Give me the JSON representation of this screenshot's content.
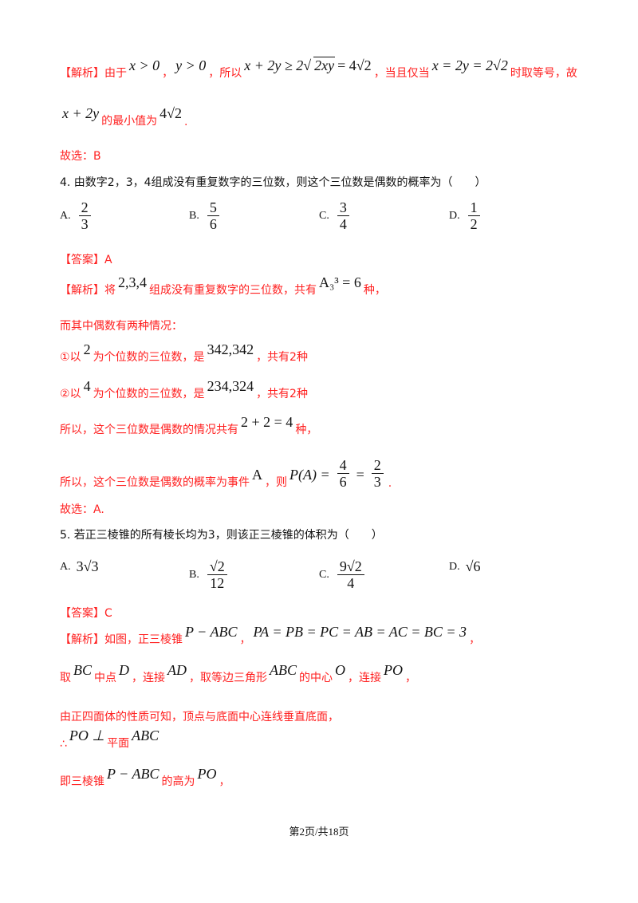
{
  "lines": [
    {
      "segs": [
        {
          "t": "r",
          "v": "【解析】由于"
        },
        {
          "t": "m",
          "v": "x > 0"
        },
        {
          "t": "r",
          "v": "，"
        },
        {
          "t": "m",
          "v": "y > 0"
        },
        {
          "t": "r",
          "v": "，所以"
        },
        {
          "t": "m",
          "v": "x + 2y ≥ 2√"
        },
        {
          "t": "rad",
          "v": "2xy"
        },
        {
          "t": "mu",
          "v": "= 4√2"
        },
        {
          "t": "r",
          "v": "，当且仅当"
        },
        {
          "t": "m",
          "v": "x = 2y = 2√2"
        },
        {
          "t": "r",
          "v": "时取等号，故"
        }
      ]
    },
    {
      "segs": [
        {
          "t": "m",
          "v": "x + 2y"
        },
        {
          "t": "r",
          "v": "的最小值为"
        },
        {
          "t": "mu",
          "v": "4√2"
        },
        {
          "t": "r",
          "v": "."
        }
      ]
    },
    {
      "segs": [
        {
          "t": "r",
          "v": "故选：B"
        }
      ]
    },
    {
      "segs": [
        {
          "t": "k",
          "v": "4. 由数字2，3，4组成没有重复数字的三位数，则这个三位数是偶数的概率为（　　）"
        }
      ]
    },
    {
      "options": [
        {
          "label": "A.",
          "num": "2",
          "den": "3"
        },
        {
          "label": "B.",
          "num": "5",
          "den": "6"
        },
        {
          "label": "C.",
          "num": "3",
          "den": "4"
        },
        {
          "label": "D.",
          "num": "1",
          "den": "2"
        }
      ]
    },
    {
      "segs": [
        {
          "t": "r",
          "v": "【答案】A"
        }
      ]
    },
    {
      "segs": [
        {
          "t": "r",
          "v": "【解析】将"
        },
        {
          "t": "mu",
          "v": "2,3,4"
        },
        {
          "t": "r",
          "v": "组成没有重复数字的三位数，共有"
        },
        {
          "t": "mu",
          "v": "A₃³ = 6"
        },
        {
          "t": "r",
          "v": "种，"
        }
      ]
    },
    {
      "segs": [
        {
          "t": "r",
          "v": "而其中偶数有两种情况："
        }
      ]
    },
    {
      "segs": [
        {
          "t": "r",
          "v": "①以"
        },
        {
          "t": "mu",
          "v": "2"
        },
        {
          "t": "r",
          "v": "为个位数的三位数，是"
        },
        {
          "t": "mu",
          "v": "342,342"
        },
        {
          "t": "r",
          "v": "，共有2种"
        }
      ]
    },
    {
      "segs": [
        {
          "t": "r",
          "v": "②以"
        },
        {
          "t": "mu",
          "v": "4"
        },
        {
          "t": "r",
          "v": "为个位数的三位数，是"
        },
        {
          "t": "mu",
          "v": "234,324"
        },
        {
          "t": "r",
          "v": "，共有2种"
        }
      ]
    },
    {
      "segs": [
        {
          "t": "r",
          "v": "所以，这个三位数是偶数的情况共有"
        },
        {
          "t": "mu",
          "v": "2 + 2 = 4"
        },
        {
          "t": "r",
          "v": "种，"
        }
      ]
    },
    {
      "segs": [
        {
          "t": "r",
          "v": "所以，这个三位数是偶数的概率为事件"
        },
        {
          "t": "mu",
          "v": "A"
        },
        {
          "t": "r",
          "v": "，则"
        },
        {
          "t": "m",
          "v": "P(A) ="
        },
        {
          "t": "f",
          "num": "4",
          "den": "6"
        },
        {
          "t": "mu",
          "v": "="
        },
        {
          "t": "f",
          "num": "2",
          "den": "3"
        },
        {
          "t": "r",
          "v": "."
        }
      ]
    },
    {
      "segs": [
        {
          "t": "r",
          "v": "故选：A."
        }
      ]
    },
    {
      "segs": [
        {
          "t": "k",
          "v": "5. 若正三棱锥的所有棱长均为3，则该正三棱锥的体积为（　　）"
        }
      ]
    },
    {
      "options": [
        {
          "label": "A.",
          "text": "3√3"
        },
        {
          "label": "B.",
          "num": "√2",
          "den": "12"
        },
        {
          "label": "C.",
          "num": "9√2",
          "den": "4"
        },
        {
          "label": "D.",
          "text": "√6"
        }
      ]
    },
    {
      "segs": [
        {
          "t": "r",
          "v": "【答案】C"
        }
      ]
    },
    {
      "segs": [
        {
          "t": "r",
          "v": "【解析】如图，正三棱锥"
        },
        {
          "t": "m",
          "v": "P − ABC"
        },
        {
          "t": "r",
          "v": "，"
        },
        {
          "t": "m",
          "v": "PA = PB = PC = AB = AC = BC = 3"
        },
        {
          "t": "r",
          "v": "，"
        }
      ]
    },
    {
      "segs": [
        {
          "t": "r",
          "v": "取"
        },
        {
          "t": "m",
          "v": "BC"
        },
        {
          "t": "r",
          "v": "中点"
        },
        {
          "t": "m",
          "v": "D"
        },
        {
          "t": "r",
          "v": "，连接"
        },
        {
          "t": "m",
          "v": "AD"
        },
        {
          "t": "r",
          "v": "，取等边三角形"
        },
        {
          "t": "m",
          "v": "ABC"
        },
        {
          "t": "r",
          "v": "的中心"
        },
        {
          "t": "m",
          "v": "O"
        },
        {
          "t": "r",
          "v": "，连接"
        },
        {
          "t": "m",
          "v": "PO"
        },
        {
          "t": "r",
          "v": "，"
        }
      ]
    },
    {
      "segs": [
        {
          "t": "r",
          "v": "由正四面体的性质可知，顶点与底面中心连线垂直底面，"
        }
      ]
    },
    {
      "segs": [
        {
          "t": "r",
          "v": "∴"
        },
        {
          "t": "m",
          "v": "PO ⊥"
        },
        {
          "t": "r",
          "v": "平面"
        },
        {
          "t": "m",
          "v": "ABC"
        }
      ]
    },
    {
      "segs": [
        {
          "t": "r",
          "v": "即三棱锥"
        },
        {
          "t": "m",
          "v": "P − ABC"
        },
        {
          "t": "r",
          "v": "的高为"
        },
        {
          "t": "m",
          "v": "PO"
        },
        {
          "t": "r",
          "v": "，"
        }
      ]
    }
  ],
  "footer": "第2页/共18页"
}
